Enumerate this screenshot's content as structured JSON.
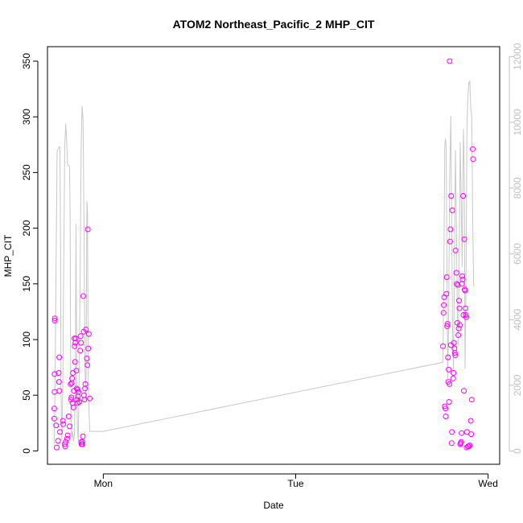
{
  "chart_data": {
    "type": "scatter",
    "title": "ATOM2 Northeast_Pacific_2 MHP_CIT",
    "xlabel": "Date",
    "ylabel": "MHP_CIT",
    "x_ticks": [
      {
        "label": "Mon",
        "value": 1.0
      },
      {
        "label": "Tue",
        "value": 2.0
      },
      {
        "label": "Wed",
        "value": 3.0
      }
    ],
    "xlim": [
      0.71,
      3.06
    ],
    "ylim": [
      -12,
      363
    ],
    "y_ticks": [
      0,
      50,
      100,
      150,
      200,
      250,
      300,
      350
    ],
    "y2lim": [
      -400,
      12300
    ],
    "y2_ticks": [
      0,
      2000,
      4000,
      6000,
      8000,
      10000,
      12000
    ],
    "colors": {
      "points": "#ff00ff",
      "line": "#c8c8c8",
      "axis": "#000000",
      "axis2": "#c0c0c0"
    },
    "series": [
      {
        "type": "scatter",
        "axis": "left",
        "points": [
          [
            0.745,
            38
          ],
          [
            0.745,
            29
          ],
          [
            0.747,
            69
          ],
          [
            0.747,
            53
          ],
          [
            0.748,
            117
          ],
          [
            0.748,
            119
          ],
          [
            0.755,
            23
          ],
          [
            0.758,
            3
          ],
          [
            0.765,
            9
          ],
          [
            0.768,
            70
          ],
          [
            0.77,
            62
          ],
          [
            0.771,
            84
          ],
          [
            0.772,
            54
          ],
          [
            0.775,
            17
          ],
          [
            0.79,
            27
          ],
          [
            0.792,
            24
          ],
          [
            0.8,
            6
          ],
          [
            0.802,
            4
          ],
          [
            0.805,
            8
          ],
          [
            0.812,
            11
          ],
          [
            0.815,
            14
          ],
          [
            0.82,
            31
          ],
          [
            0.825,
            22
          ],
          [
            0.83,
            60
          ],
          [
            0.832,
            46
          ],
          [
            0.834,
            48
          ],
          [
            0.836,
            61
          ],
          [
            0.838,
            65
          ],
          [
            0.84,
            43
          ],
          [
            0.842,
            70
          ],
          [
            0.845,
            39
          ],
          [
            0.848,
            54
          ],
          [
            0.85,
            101
          ],
          [
            0.851,
            94
          ],
          [
            0.853,
            80
          ],
          [
            0.855,
            97
          ],
          [
            0.857,
            101
          ],
          [
            0.86,
            72
          ],
          [
            0.862,
            56
          ],
          [
            0.864,
            46
          ],
          [
            0.866,
            55
          ],
          [
            0.867,
            43
          ],
          [
            0.869,
            49
          ],
          [
            0.871,
            53
          ],
          [
            0.875,
            44
          ],
          [
            0.88,
            90
          ],
          [
            0.882,
            103
          ],
          [
            0.884,
            97
          ],
          [
            0.885,
            8
          ],
          [
            0.887,
            6
          ],
          [
            0.889,
            6
          ],
          [
            0.891,
            6
          ],
          [
            0.892,
            8
          ],
          [
            0.894,
            13
          ],
          [
            0.896,
            139
          ],
          [
            0.898,
            107
          ],
          [
            0.9,
            50
          ],
          [
            0.902,
            46
          ],
          [
            0.905,
            56
          ],
          [
            0.907,
            60
          ],
          [
            0.91,
            109
          ],
          [
            0.915,
            83
          ],
          [
            0.918,
            77
          ],
          [
            0.92,
            199
          ],
          [
            0.922,
            92
          ],
          [
            0.925,
            105
          ],
          [
            0.93,
            47
          ],
          [
            2.765,
            94
          ],
          [
            2.768,
            124
          ],
          [
            2.77,
            131
          ],
          [
            2.772,
            138
          ],
          [
            2.775,
            40
          ],
          [
            2.778,
            38
          ],
          [
            2.78,
            31
          ],
          [
            2.783,
            141
          ],
          [
            2.785,
            156
          ],
          [
            2.787,
            112
          ],
          [
            2.789,
            114
          ],
          [
            2.791,
            84
          ],
          [
            2.793,
            62
          ],
          [
            2.795,
            73
          ],
          [
            2.797,
            44
          ],
          [
            2.799,
            60
          ],
          [
            2.8,
            350
          ],
          [
            2.802,
            188
          ],
          [
            2.804,
            199
          ],
          [
            2.806,
            95
          ],
          [
            2.808,
            229
          ],
          [
            2.81,
            7
          ],
          [
            2.812,
            17
          ],
          [
            2.814,
            216
          ],
          [
            2.818,
            65
          ],
          [
            2.82,
            70
          ],
          [
            2.822,
            97
          ],
          [
            2.825,
            92
          ],
          [
            2.827,
            88
          ],
          [
            2.829,
            86
          ],
          [
            2.831,
            180
          ],
          [
            2.835,
            160
          ],
          [
            2.837,
            150
          ],
          [
            2.84,
            115
          ],
          [
            2.842,
            149
          ],
          [
            2.845,
            104
          ],
          [
            2.847,
            110
          ],
          [
            2.849,
            135
          ],
          [
            2.851,
            128
          ],
          [
            2.853,
            113
          ],
          [
            2.855,
            6
          ],
          [
            2.857,
            7
          ],
          [
            2.86,
            8
          ],
          [
            2.862,
            16
          ],
          [
            2.864,
            150
          ],
          [
            2.866,
            157
          ],
          [
            2.868,
            154
          ],
          [
            2.87,
            229
          ],
          [
            2.872,
            122
          ],
          [
            2.874,
            54
          ],
          [
            2.876,
            190
          ],
          [
            2.878,
            145
          ],
          [
            2.88,
            144
          ],
          [
            2.882,
            128
          ],
          [
            2.884,
            122
          ],
          [
            2.886,
            120
          ],
          [
            2.888,
            3
          ],
          [
            2.89,
            17
          ],
          [
            2.895,
            4
          ],
          [
            2.9,
            4
          ],
          [
            2.905,
            5
          ],
          [
            2.91,
            27
          ],
          [
            2.912,
            15
          ],
          [
            2.915,
            46
          ],
          [
            2.92,
            271
          ],
          [
            2.922,
            262
          ]
        ]
      },
      {
        "type": "line",
        "axis": "right",
        "points": [
          [
            0.745,
            200
          ],
          [
            0.75,
            2500
          ],
          [
            0.755,
            6000
          ],
          [
            0.76,
            9100
          ],
          [
            0.765,
            9200
          ],
          [
            0.77,
            9250
          ],
          [
            0.775,
            9250
          ],
          [
            0.778,
            6000
          ],
          [
            0.78,
            2000
          ],
          [
            0.783,
            800
          ],
          [
            0.785,
            300
          ],
          [
            0.79,
            2000
          ],
          [
            0.795,
            6000
          ],
          [
            0.8,
            9300
          ],
          [
            0.805,
            9950
          ],
          [
            0.81,
            9400
          ],
          [
            0.815,
            8700
          ],
          [
            0.82,
            8700
          ],
          [
            0.825,
            8650
          ],
          [
            0.828,
            7000
          ],
          [
            0.83,
            3000
          ],
          [
            0.833,
            700
          ],
          [
            0.836,
            400
          ],
          [
            0.84,
            600
          ],
          [
            0.845,
            300
          ],
          [
            0.85,
            500
          ],
          [
            0.855,
            2200
          ],
          [
            0.858,
            6900
          ],
          [
            0.862,
            1800
          ],
          [
            0.866,
            700
          ],
          [
            0.87,
            300
          ],
          [
            0.875,
            2500
          ],
          [
            0.88,
            5600
          ],
          [
            0.885,
            9300
          ],
          [
            0.89,
            10500
          ],
          [
            0.895,
            10100
          ],
          [
            0.9,
            7000
          ],
          [
            0.905,
            2500
          ],
          [
            0.91,
            1500
          ],
          [
            0.915,
            7600
          ],
          [
            0.918,
            7300
          ],
          [
            0.922,
            2200
          ],
          [
            0.926,
            1200
          ],
          [
            0.93,
            600
          ],
          [
            1.0,
            600
          ],
          [
            2.765,
            2700
          ],
          [
            2.77,
            5400
          ],
          [
            2.775,
            9300
          ],
          [
            2.778,
            9500
          ],
          [
            2.782,
            9250
          ],
          [
            2.786,
            5500
          ],
          [
            2.79,
            2200
          ],
          [
            2.795,
            4000
          ],
          [
            2.8,
            8200
          ],
          [
            2.806,
            10200
          ],
          [
            2.81,
            7500
          ],
          [
            2.815,
            3800
          ],
          [
            2.82,
            2500
          ],
          [
            2.825,
            5500
          ],
          [
            2.83,
            9150
          ],
          [
            2.835,
            7000
          ],
          [
            2.84,
            4200
          ],
          [
            2.845,
            3200
          ],
          [
            2.85,
            6200
          ],
          [
            2.855,
            9400
          ],
          [
            2.86,
            7600
          ],
          [
            2.865,
            5600
          ],
          [
            2.868,
            7800
          ],
          [
            2.872,
            9800
          ],
          [
            2.876,
            8300
          ],
          [
            2.88,
            2500
          ],
          [
            2.885,
            4800
          ],
          [
            2.89,
            9800
          ],
          [
            2.895,
            10800
          ],
          [
            2.9,
            11200
          ],
          [
            2.905,
            11250
          ],
          [
            2.91,
            10400
          ],
          [
            2.915,
            10200
          ],
          [
            2.92,
            7000
          ],
          [
            2.925,
            5000
          ]
        ]
      }
    ]
  }
}
